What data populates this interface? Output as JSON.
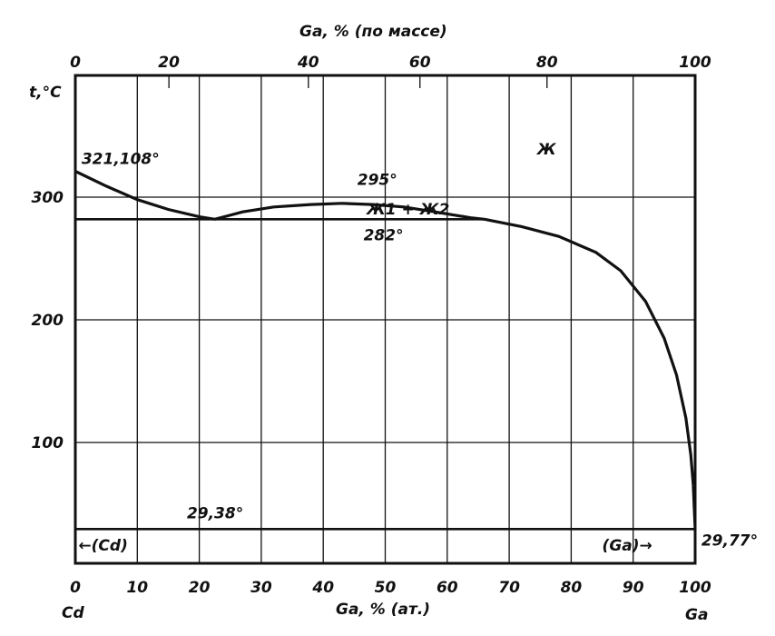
{
  "chart_data": {
    "type": "line",
    "title": "",
    "top_axis": {
      "label": "Ga, % (по массе)",
      "ticks": [
        "0",
        "20",
        "40",
        "60",
        "80",
        "100"
      ],
      "tick_at_pct": [
        0,
        15.1,
        37.6,
        55.6,
        76.1,
        100
      ]
    },
    "xlabel": "Ga, % (ат.)",
    "xlim": [
      0,
      100
    ],
    "x_ticks": [
      "0",
      "10",
      "20",
      "30",
      "40",
      "50",
      "60",
      "70",
      "80",
      "90",
      "100"
    ],
    "x_tick_values": [
      0,
      10,
      20,
      30,
      40,
      50,
      60,
      70,
      80,
      90,
      100
    ],
    "ylabel": "t,°C",
    "ylim": [
      0,
      360
    ],
    "y_ticks": [
      "100",
      "200",
      "300"
    ],
    "y_tick_values": [
      100,
      200,
      300
    ],
    "grid": true,
    "left_end_label": "Cd",
    "right_end_label": "Ga",
    "series": [
      {
        "role": "liquidus-Cd",
        "points": [
          [
            0,
            321.1
          ],
          [
            5,
            309
          ],
          [
            10,
            298
          ],
          [
            15,
            290
          ],
          [
            20,
            284
          ],
          [
            22.5,
            282
          ]
        ]
      },
      {
        "role": "miscibility-gap",
        "points": [
          [
            22.5,
            282
          ],
          [
            27,
            288
          ],
          [
            32,
            292
          ],
          [
            38,
            294
          ],
          [
            43,
            295
          ],
          [
            48,
            294
          ],
          [
            53,
            292
          ],
          [
            58,
            288
          ],
          [
            64,
            283
          ],
          [
            66,
            282
          ]
        ]
      },
      {
        "role": "liquidus-Ga",
        "points": [
          [
            66,
            282
          ],
          [
            72,
            276
          ],
          [
            78,
            268
          ],
          [
            84,
            255
          ],
          [
            88,
            240
          ],
          [
            92,
            215
          ],
          [
            95,
            185
          ],
          [
            97,
            155
          ],
          [
            98.5,
            120
          ],
          [
            99.3,
            90
          ],
          [
            99.7,
            65
          ]
        ]
      }
    ],
    "horizontal_lines": [
      {
        "role": "monotectic",
        "y": 282,
        "x": [
          0,
          66
        ]
      },
      {
        "role": "eutectic",
        "y": 29.4,
        "x": [
          0,
          100
        ]
      }
    ],
    "annotations": [
      {
        "text": "321,108°",
        "x": 1,
        "y": 327
      },
      {
        "text": "295°",
        "x": 45.5,
        "y": 310
      },
      {
        "text": "Ж1 + Ж2",
        "x": 47,
        "y": 286
      },
      {
        "text": "282°",
        "x": 46.5,
        "y": 265
      },
      {
        "text": "Ж",
        "x": 74.5,
        "y": 335
      },
      {
        "text": "29,38°",
        "x": 18,
        "y": 38
      },
      {
        "text": "29,77°",
        "x": 101,
        "y": 16
      },
      {
        "text": "←(Cd)",
        "x": 0.5,
        "y": 12
      },
      {
        "text": "(Ga)→",
        "x": 85,
        "y": 12
      }
    ]
  }
}
